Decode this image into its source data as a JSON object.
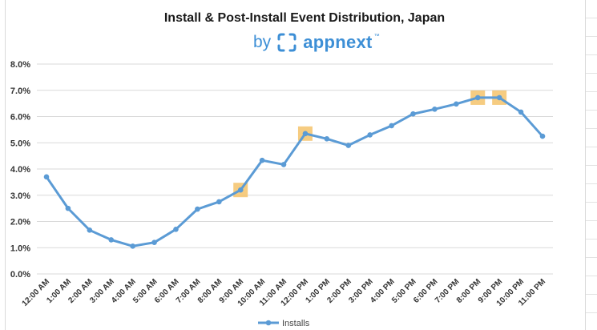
{
  "chart_data": {
    "type": "line",
    "title": "Install & Post-Install Event Distribution, Japan",
    "subtitle_prefix": "by",
    "brand_name": "appnext",
    "brand_tm": "™",
    "categories": [
      "12:00 AM",
      "1:00 AM",
      "2:00 AM",
      "3:00 AM",
      "4:00 AM",
      "5:00 AM",
      "6:00 AM",
      "7:00 AM",
      "8:00 AM",
      "9:00 AM",
      "10:00 AM",
      "11:00 AM",
      "12:00 PM",
      "1:00 PM",
      "2:00 PM",
      "3:00 PM",
      "4:00 PM",
      "5:00 PM",
      "6:00 PM",
      "7:00 PM",
      "8:00 PM",
      "9:00 PM",
      "10:00 PM",
      "11:00 PM"
    ],
    "series": [
      {
        "name": "Installs",
        "values": [
          3.7,
          2.5,
          1.67,
          1.3,
          1.06,
          1.2,
          1.7,
          2.47,
          2.75,
          3.2,
          4.33,
          4.17,
          5.35,
          5.15,
          4.9,
          5.3,
          5.65,
          6.1,
          6.28,
          6.48,
          6.72,
          6.72,
          6.17,
          5.25
        ],
        "color": "#5b9bd5"
      }
    ],
    "highlighted_categories": [
      "9:00 AM",
      "12:00 PM",
      "8:00 PM",
      "9:00 PM"
    ],
    "highlight_color": "#f5c36b",
    "ylim": [
      0,
      8
    ],
    "yticks": [
      "0.0%",
      "1.0%",
      "2.0%",
      "3.0%",
      "4.0%",
      "5.0%",
      "6.0%",
      "7.0%",
      "8.0%"
    ],
    "grid": true,
    "legend_position": "bottom",
    "brand_color": "#3d8fd6"
  }
}
